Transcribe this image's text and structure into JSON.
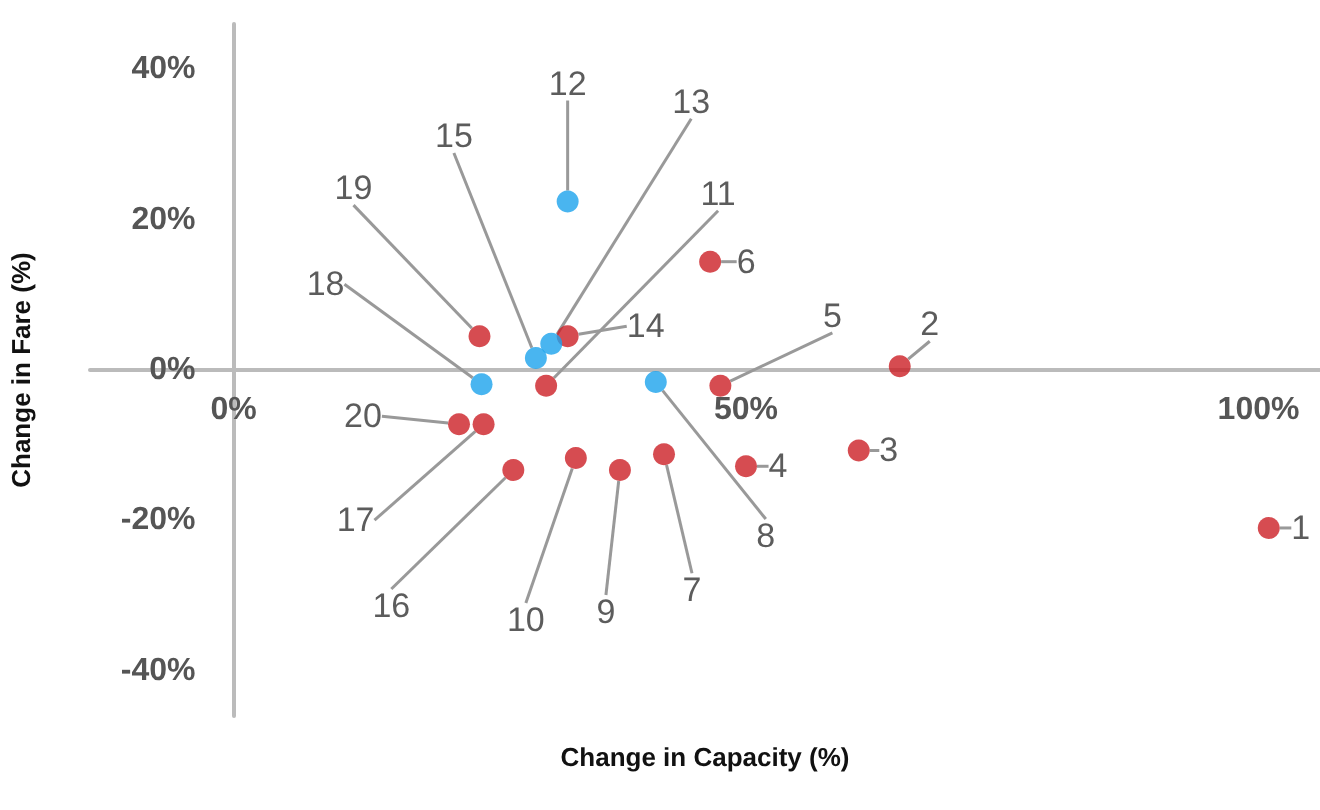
{
  "chart_data": {
    "type": "scatter",
    "xlabel": "Change in Capacity (%)",
    "ylabel": "Change in Fare (%)",
    "xlim": [
      -14,
      106
    ],
    "ylim": [
      -46,
      46
    ],
    "xticks": [
      {
        "value": 0,
        "label": "0%"
      },
      {
        "value": 50,
        "label": "50%"
      },
      {
        "value": 100,
        "label": "100%"
      }
    ],
    "yticks": [
      {
        "value": -40,
        "label": "-40%"
      },
      {
        "value": -20,
        "label": "-20%"
      },
      {
        "value": 0,
        "label": "0%"
      },
      {
        "value": 20,
        "label": "20%"
      },
      {
        "value": 40,
        "label": "40%"
      }
    ],
    "marker": "circle",
    "series": [
      {
        "color": "#cc1f26",
        "x": [
          101,
          65,
          61,
          50,
          47.5,
          46.5,
          42,
          37.7,
          33.4,
          30.5,
          32.6,
          27.3,
          24.4,
          24,
          22
        ],
        "values": [
          -21,
          0.5,
          -10.7,
          -12.8,
          -2.1,
          14.4,
          -11.2,
          -13.3,
          -11.7,
          -2.1,
          4.5,
          -13.3,
          -7.2,
          4.5,
          -7.2
        ]
      },
      {
        "color": "#1ba3ec",
        "x": [
          41.2,
          32.6,
          31,
          29.5,
          24.2
        ],
        "values": [
          -1.6,
          22.4,
          3.5,
          1.6,
          -1.9
        ]
      }
    ],
    "annotations": [
      {
        "text": "1",
        "x": 101,
        "y": -21
      },
      {
        "text": "2",
        "x": 65,
        "y": 0.5
      },
      {
        "text": "3",
        "x": 61,
        "y": -10.7
      },
      {
        "text": "4",
        "x": 50,
        "y": -12.8
      },
      {
        "text": "5",
        "x": 47.5,
        "y": -2.1
      },
      {
        "text": "6",
        "x": 46.5,
        "y": 14.4
      },
      {
        "text": "7",
        "x": 42,
        "y": -11.2
      },
      {
        "text": "8",
        "x": 41.2,
        "y": -1.6
      },
      {
        "text": "9",
        "x": 37.7,
        "y": -13.3
      },
      {
        "text": "10",
        "x": 33.4,
        "y": -11.7
      },
      {
        "text": "11",
        "x": 30.5,
        "y": -2.1
      },
      {
        "text": "12",
        "x": 32.6,
        "y": 22.4
      },
      {
        "text": "13",
        "x": 31,
        "y": 3.5
      },
      {
        "text": "14",
        "x": 32.6,
        "y": 4.5
      },
      {
        "text": "15",
        "x": 29.5,
        "y": 1.6
      },
      {
        "text": "16",
        "x": 27.3,
        "y": -13.3
      },
      {
        "text": "17",
        "x": 24.4,
        "y": -7.2
      },
      {
        "text": "18",
        "x": 24.2,
        "y": -1.9
      },
      {
        "text": "19",
        "x": 24,
        "y": 4.5
      },
      {
        "text": "20",
        "x": 22,
        "y": -7.2
      }
    ]
  }
}
